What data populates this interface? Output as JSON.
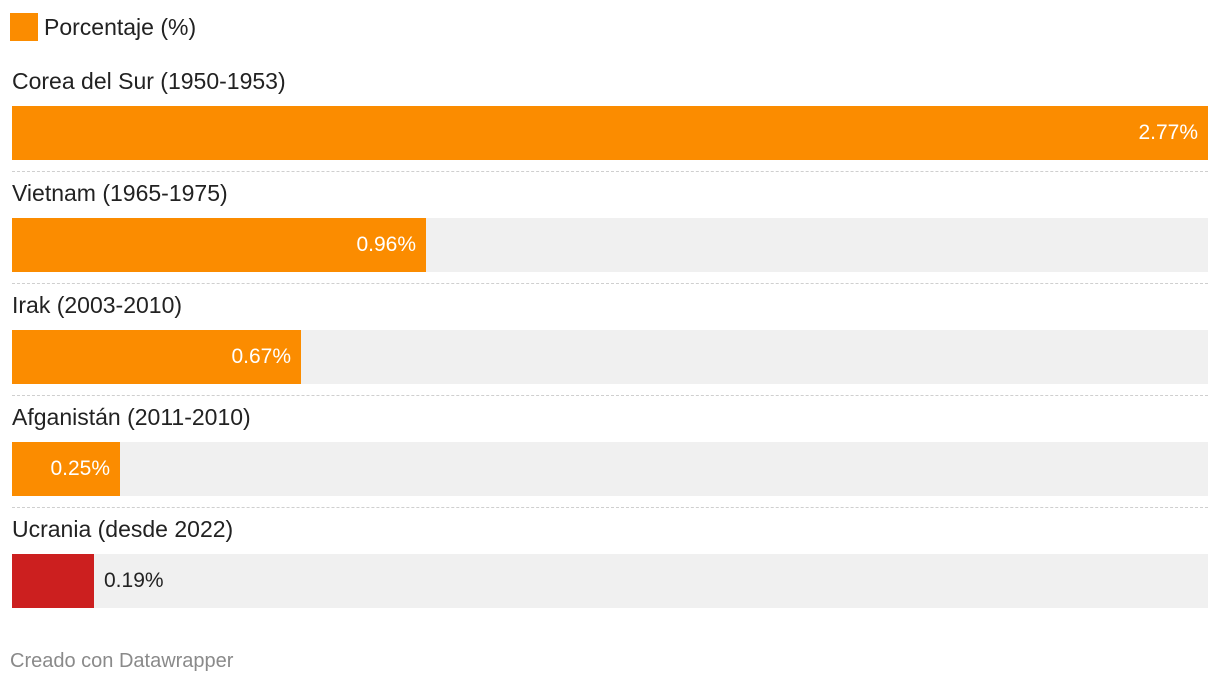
{
  "legend": {
    "label": "Porcentaje (%)",
    "color": "#fb8c00"
  },
  "footer": "Creado con Datawrapper",
  "chart_data": {
    "type": "bar",
    "orientation": "horizontal",
    "categories": [
      "Corea del Sur (1950-1953)",
      "Vietnam (1965-1975)",
      "Irak (2003-2010)",
      "Afganistán (2011-2010)",
      "Ucrania (desde 2022)"
    ],
    "series": [
      {
        "name": "Porcentaje (%)",
        "values": [
          2.77,
          0.96,
          0.67,
          0.25,
          0.19
        ]
      }
    ],
    "value_labels": [
      "2.77%",
      "0.96%",
      "0.67%",
      "0.25%",
      "0.19%"
    ],
    "bar_colors": [
      "#fb8c00",
      "#fb8c00",
      "#fb8c00",
      "#fb8c00",
      "#cc1f1f"
    ],
    "track_color": "#f0f0f0",
    "xlim": [
      0,
      2.77
    ],
    "legend_position": "top-left",
    "grid": false
  }
}
